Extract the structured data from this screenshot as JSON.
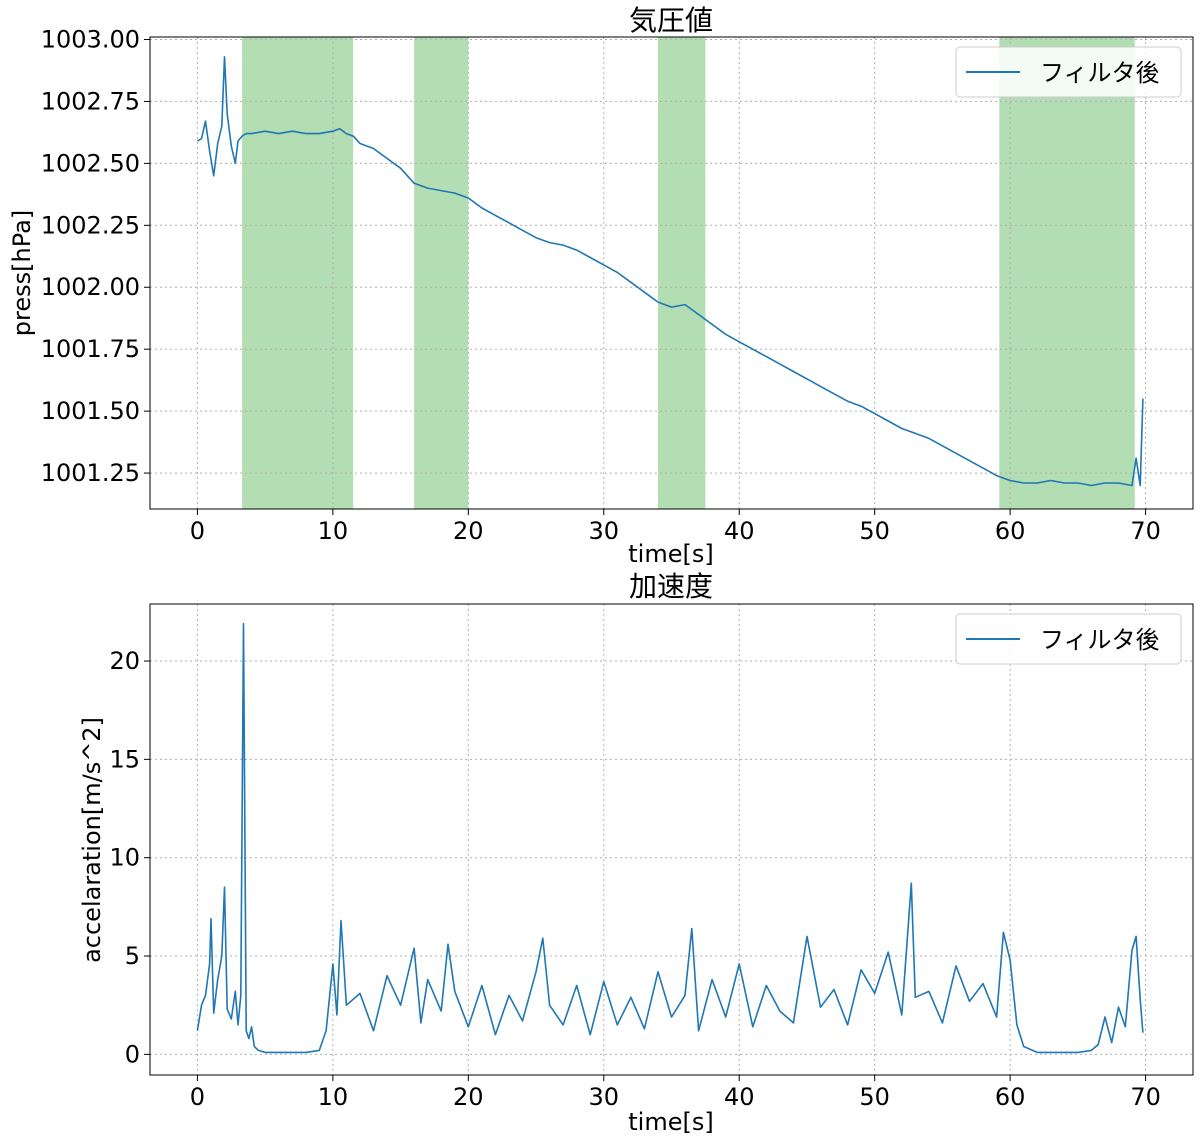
{
  "chart_data": [
    {
      "type": "line",
      "title": "気圧値",
      "xlabel": "time[s]",
      "ylabel": "press[hPa]",
      "xlim": [
        -3.5,
        73.5
      ],
      "ylim": [
        1001.105,
        1003.01
      ],
      "x_ticks": [
        0,
        10,
        20,
        30,
        40,
        50,
        60,
        70
      ],
      "x_tick_labels": [
        "0",
        "10",
        "20",
        "30",
        "40",
        "50",
        "60",
        "70"
      ],
      "y_ticks": [
        1001.25,
        1001.5,
        1001.75,
        1002.0,
        1002.25,
        1002.5,
        1002.75,
        1003.0
      ],
      "y_tick_labels": [
        "1001.25",
        "1001.50",
        "1001.75",
        "1002.00",
        "1002.25",
        "1002.50",
        "1002.75",
        "1003.00"
      ],
      "grid": true,
      "legend_position": "top-right",
      "series": [
        {
          "name": "フィルタ後",
          "color": "#1f77b4",
          "x": [
            0,
            0.3,
            0.6,
            0.9,
            1.2,
            1.5,
            1.8,
            2.0,
            2.2,
            2.5,
            2.8,
            3.0,
            3.3,
            3.6,
            4,
            5,
            6,
            7,
            8,
            9,
            10,
            10.5,
            11,
            11.5,
            12,
            13,
            14,
            15,
            16,
            17,
            18,
            19,
            20,
            21,
            22,
            23,
            24,
            25,
            26,
            27,
            28,
            29,
            30,
            31,
            32,
            33,
            34,
            35,
            36,
            37,
            38,
            39,
            40,
            41,
            42,
            43,
            44,
            45,
            46,
            47,
            48,
            49,
            50,
            51,
            52,
            53,
            54,
            55,
            56,
            57,
            58,
            59,
            60,
            61,
            62,
            63,
            64,
            65,
            66,
            67,
            68,
            69,
            69.3,
            69.6,
            69.8
          ],
          "values": [
            1002.59,
            1002.6,
            1002.67,
            1002.55,
            1002.45,
            1002.58,
            1002.65,
            1002.93,
            1002.7,
            1002.57,
            1002.5,
            1002.59,
            1002.61,
            1002.62,
            1002.62,
            1002.63,
            1002.62,
            1002.63,
            1002.62,
            1002.62,
            1002.63,
            1002.64,
            1002.62,
            1002.61,
            1002.58,
            1002.56,
            1002.52,
            1002.48,
            1002.42,
            1002.4,
            1002.39,
            1002.38,
            1002.36,
            1002.32,
            1002.29,
            1002.26,
            1002.23,
            1002.2,
            1002.18,
            1002.17,
            1002.15,
            1002.12,
            1002.09,
            1002.06,
            1002.02,
            1001.98,
            1001.94,
            1001.92,
            1001.93,
            1001.89,
            1001.85,
            1001.81,
            1001.78,
            1001.75,
            1001.72,
            1001.69,
            1001.66,
            1001.63,
            1001.6,
            1001.57,
            1001.54,
            1001.52,
            1001.49,
            1001.46,
            1001.43,
            1001.41,
            1001.39,
            1001.36,
            1001.33,
            1001.3,
            1001.27,
            1001.24,
            1001.22,
            1001.21,
            1001.21,
            1001.22,
            1001.21,
            1001.21,
            1001.2,
            1001.21,
            1001.21,
            1001.2,
            1001.31,
            1001.2,
            1001.55
          ]
        }
      ],
      "shaded_spans": [
        [
          3.3,
          11.5
        ],
        [
          16,
          20
        ],
        [
          34,
          37.5
        ],
        [
          59.2,
          69.2
        ]
      ],
      "shade_color": "#2ca02c"
    },
    {
      "type": "line",
      "title": "加速度",
      "xlabel": "time[s]",
      "ylabel": "accelaration[m/s^2]",
      "xlim": [
        -3.5,
        73.5
      ],
      "ylim": [
        -1.05,
        22.9
      ],
      "x_ticks": [
        0,
        10,
        20,
        30,
        40,
        50,
        60,
        70
      ],
      "x_tick_labels": [
        "0",
        "10",
        "20",
        "30",
        "40",
        "50",
        "60",
        "70"
      ],
      "y_ticks": [
        0,
        5,
        10,
        15,
        20
      ],
      "y_tick_labels": [
        "0",
        "5",
        "10",
        "15",
        "20"
      ],
      "grid": true,
      "legend_position": "top-right",
      "series": [
        {
          "name": "フィルタ後",
          "color": "#1f77b4",
          "x": [
            0,
            0.3,
            0.6,
            0.9,
            1.0,
            1.2,
            1.5,
            1.8,
            2.0,
            2.2,
            2.5,
            2.8,
            3.0,
            3.2,
            3.4,
            3.6,
            3.8,
            4.0,
            4.2,
            4.5,
            5,
            6,
            7,
            8,
            9,
            9.5,
            10,
            10.3,
            10.6,
            11,
            12,
            13,
            14,
            15,
            16,
            16.5,
            17,
            18,
            18.5,
            19,
            20,
            21,
            22,
            23,
            24,
            25,
            25.5,
            26,
            27,
            28,
            29,
            30,
            31,
            32,
            33,
            34,
            35,
            36,
            36.5,
            37,
            38,
            39,
            40,
            41,
            42,
            43,
            44,
            45,
            46,
            47,
            48,
            49,
            50,
            51,
            52,
            52.7,
            53,
            54,
            55,
            56,
            57,
            58,
            59,
            59.5,
            60,
            60.5,
            61,
            62,
            63,
            64,
            65,
            66,
            66.5,
            67,
            67.5,
            68,
            68.5,
            69,
            69.3,
            69.6,
            69.8
          ],
          "values": [
            1.2,
            2.5,
            3.0,
            4.6,
            6.9,
            2.1,
            3.8,
            5.0,
            8.5,
            2.3,
            1.8,
            3.2,
            1.5,
            3.0,
            21.9,
            1.2,
            0.8,
            1.4,
            0.4,
            0.2,
            0.1,
            0.1,
            0.1,
            0.1,
            0.2,
            1.2,
            4.6,
            2.0,
            6.8,
            2.5,
            3.1,
            1.2,
            4.0,
            2.5,
            5.4,
            1.6,
            3.8,
            2.2,
            5.6,
            3.2,
            1.4,
            3.5,
            1.0,
            3.0,
            1.7,
            4.2,
            5.9,
            2.5,
            1.5,
            3.5,
            1.0,
            3.7,
            1.5,
            2.9,
            1.3,
            4.2,
            1.9,
            3.0,
            6.4,
            1.2,
            3.8,
            1.9,
            4.6,
            1.4,
            3.5,
            2.2,
            1.6,
            6.0,
            2.4,
            3.3,
            1.5,
            4.3,
            3.1,
            5.2,
            2.0,
            8.7,
            2.9,
            3.2,
            1.6,
            4.5,
            2.7,
            3.6,
            1.9,
            6.2,
            4.8,
            1.5,
            0.4,
            0.1,
            0.1,
            0.1,
            0.1,
            0.2,
            0.5,
            1.9,
            0.6,
            2.4,
            1.4,
            5.3,
            6.0,
            2.8,
            1.1
          ]
        }
      ]
    }
  ]
}
